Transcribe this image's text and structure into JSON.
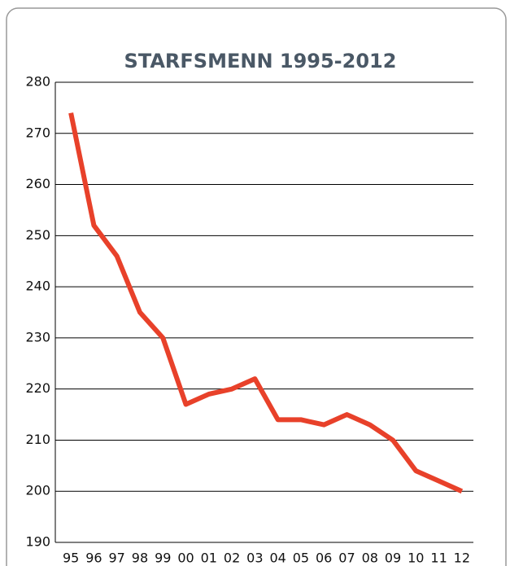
{
  "chart_data": {
    "type": "line",
    "title": "STARFSMENN 1995-2012",
    "categories": [
      "95",
      "96",
      "97",
      "98",
      "99",
      "00",
      "01",
      "02",
      "03",
      "04",
      "05",
      "06",
      "07",
      "08",
      "09",
      "10",
      "11",
      "12"
    ],
    "series": [
      {
        "name": "Starfsmenn",
        "color": "#e8412a",
        "values": [
          274,
          252,
          246,
          235,
          230,
          217,
          219,
          220,
          222,
          214,
          214,
          213,
          215,
          213,
          210,
          204,
          202,
          200
        ]
      }
    ],
    "ylim": [
      190,
      280
    ],
    "yticks": [
      190,
      200,
      210,
      220,
      230,
      240,
      250,
      260,
      270,
      280
    ],
    "grid": true
  }
}
